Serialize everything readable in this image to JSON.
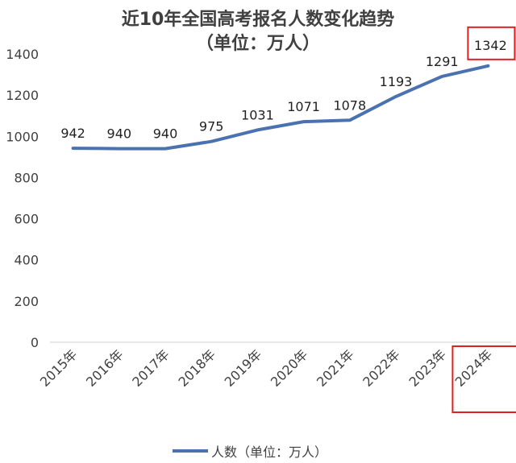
{
  "chart_data": {
    "type": "line",
    "title": "近10年全国高考报名人数变化趋势",
    "subtitle": "（单位：万人）",
    "categories": [
      "2015年",
      "2016年",
      "2017年",
      "2018年",
      "2019年",
      "2020年",
      "2021年",
      "2022年",
      "2023年",
      "2024年"
    ],
    "series": [
      {
        "name": "人数（单位：万人）",
        "values": [
          942,
          940,
          940,
          975,
          1031,
          1071,
          1078,
          1193,
          1291,
          1342
        ]
      }
    ],
    "ylim": [
      0,
      1400
    ],
    "yticks": [
      "0",
      "200",
      "400",
      "600",
      "800",
      "1000",
      "1200",
      "1400"
    ],
    "grid": false,
    "legend_position": "bottom",
    "highlighted_category": "2024年",
    "colors": {
      "line": "#4a72b0",
      "highlight": "#e02020"
    }
  }
}
